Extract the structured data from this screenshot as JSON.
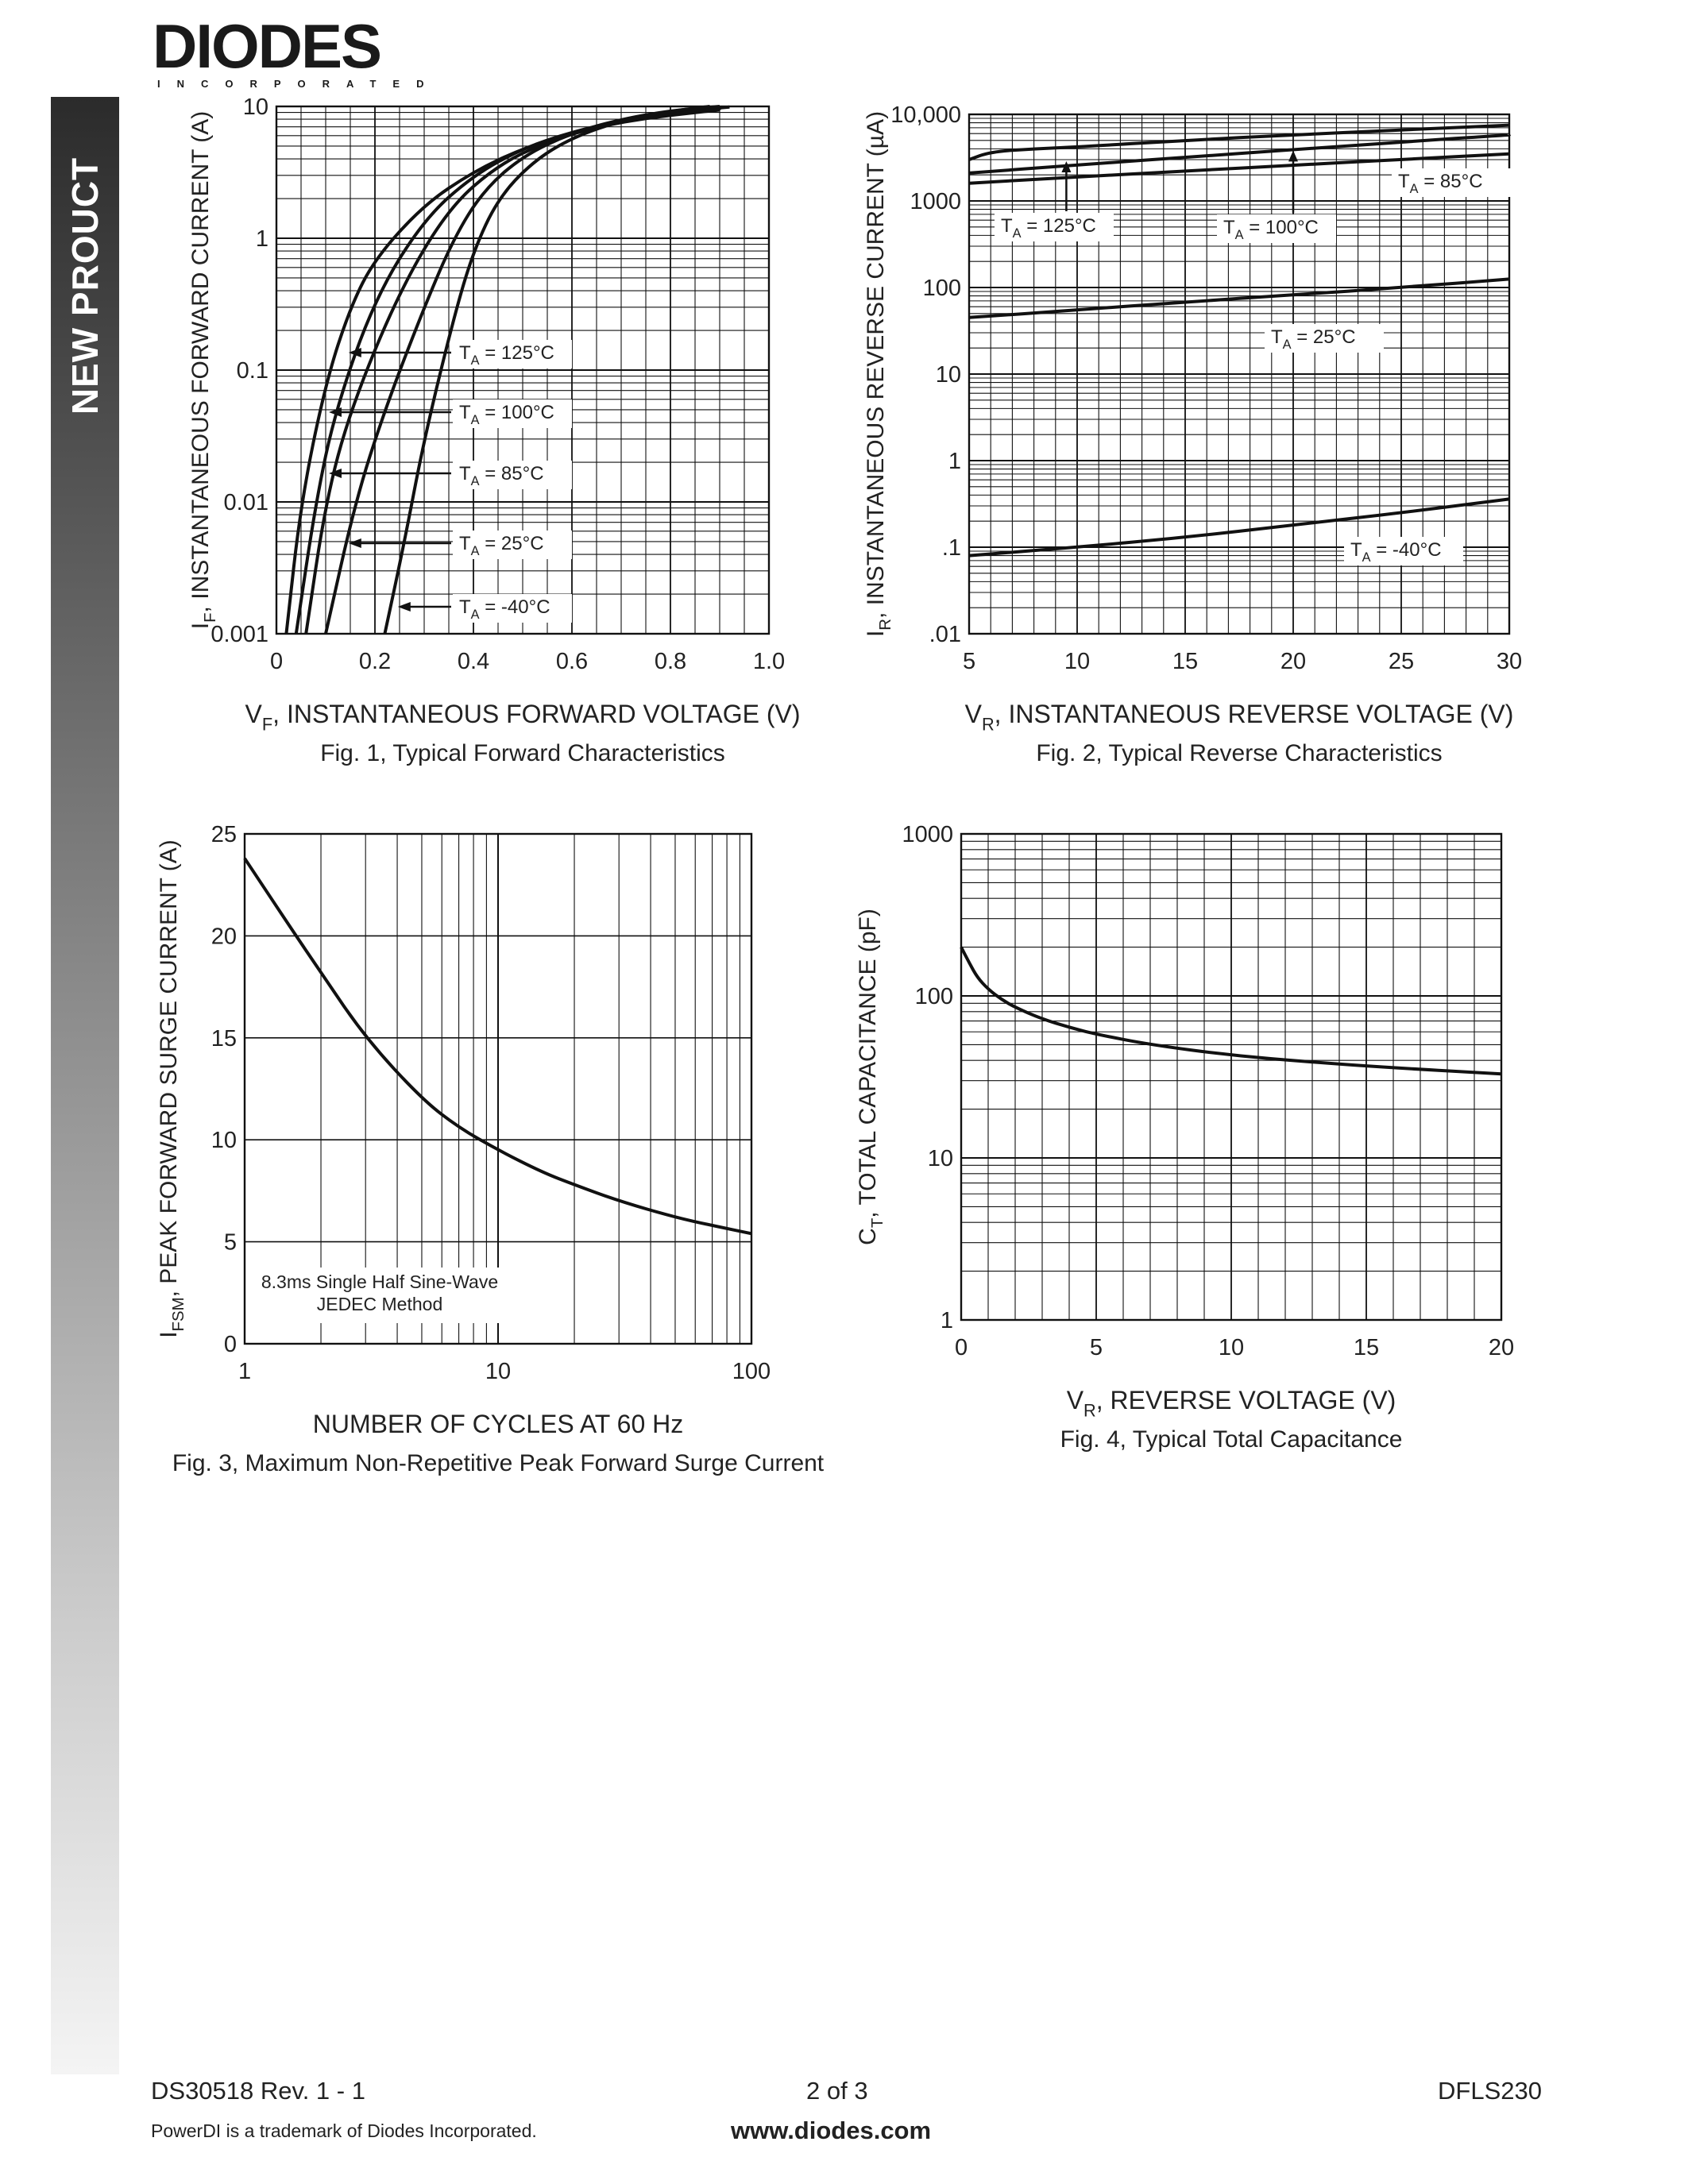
{
  "header": {
    "logo_text": "DIODES",
    "logo_sub": "INCORPORATED"
  },
  "sidebar": {
    "label": "NEW PROUCT"
  },
  "footer": {
    "doc_id": "DS30518 Rev. 1 - 1",
    "page": "2 of 3",
    "part": "DFLS230",
    "trademark": "PowerDI is a trademark of Diodes Incorporated.",
    "url": "www.diodes.com"
  },
  "chart_data": [
    {
      "id": "fig1",
      "type": "line",
      "title": "Fig. 1, Typical Forward Characteristics",
      "xlabel": "V",
      "xlabel_sub": "F",
      "xlabel_rest": ", INSTANTANEOUS FORWARD VOLTAGE (V)",
      "ylabel": "I",
      "ylabel_sub": "F",
      "ylabel_rest": ", INSTANTANEOUS FORWARD CURRENT (A)",
      "xlim": [
        0,
        1.0
      ],
      "ylim": [
        0.001,
        10
      ],
      "ylog": true,
      "xticks": [
        "0",
        "0.2",
        "0.4",
        "0.6",
        "0.8",
        "1.0"
      ],
      "yticks": [
        "0.001",
        "0.01",
        "0.1",
        "1",
        "10"
      ],
      "grid": true,
      "series": [
        {
          "name": "T = 125°C",
          "x": [
            0.02,
            0.05,
            0.1,
            0.15,
            0.2,
            0.3,
            0.4,
            0.5,
            0.6,
            0.7,
            0.8,
            0.9
          ],
          "y": [
            0.001,
            0.01,
            0.08,
            0.3,
            0.7,
            1.8,
            3.2,
            4.8,
            6.3,
            7.6,
            8.6,
            9.4
          ]
        },
        {
          "name": "T = 100°C",
          "x": [
            0.04,
            0.08,
            0.12,
            0.2,
            0.3,
            0.4,
            0.5,
            0.6,
            0.7,
            0.8,
            0.9
          ],
          "y": [
            0.001,
            0.01,
            0.05,
            0.35,
            1.4,
            3.0,
            4.8,
            6.4,
            7.8,
            8.8,
            9.6
          ]
        },
        {
          "name": "T = 85°C",
          "x": [
            0.06,
            0.1,
            0.15,
            0.25,
            0.35,
            0.45,
            0.55,
            0.65,
            0.75,
            0.85,
            0.92
          ],
          "y": [
            0.001,
            0.01,
            0.05,
            0.4,
            1.7,
            3.6,
            5.4,
            7.0,
            8.4,
            9.4,
            9.9
          ]
        },
        {
          "name": "T = 25°C",
          "x": [
            0.1,
            0.16,
            0.22,
            0.3,
            0.36,
            0.42,
            0.5,
            0.6,
            0.7,
            0.8,
            0.9
          ],
          "y": [
            0.001,
            0.01,
            0.05,
            0.3,
            1.0,
            2.3,
            4.2,
            6.3,
            8.0,
            9.3,
            10.0
          ]
        },
        {
          "name": "T = -40°C",
          "x": [
            0.22,
            0.26,
            0.3,
            0.36,
            0.4,
            0.45,
            0.52,
            0.6,
            0.7,
            0.8,
            0.88
          ],
          "y": [
            0.001,
            0.005,
            0.03,
            0.25,
            0.8,
            2.0,
            3.8,
            5.8,
            7.8,
            9.2,
            10.0
          ]
        }
      ],
      "annotations": [
        {
          "text": "T",
          "sub": "A",
          "rest": " = 125°C"
        },
        {
          "text": "T",
          "sub": "A",
          "rest": " = 100°C"
        },
        {
          "text": "T",
          "sub": "A",
          "rest": " = 85°C"
        },
        {
          "text": "T",
          "sub": "A",
          "rest": " = 25°C"
        },
        {
          "text": "T",
          "sub": "A",
          "rest": " = -40°C"
        }
      ]
    },
    {
      "id": "fig2",
      "type": "line",
      "title": "Fig. 2, Typical Reverse Characteristics",
      "xlabel": "V",
      "xlabel_sub": "R",
      "xlabel_rest": ", INSTANTANEOUS REVERSE VOLTAGE (V)",
      "ylabel": "I",
      "ylabel_sub": "R",
      "ylabel_rest": ", INSTANTANEOUS REVERSE CURRENT (µA)",
      "xlim": [
        5,
        30
      ],
      "ylim": [
        0.01,
        10000
      ],
      "ylog": true,
      "xticks": [
        "5",
        "10",
        "15",
        "20",
        "25",
        "30"
      ],
      "yticks": [
        ".01",
        ".1",
        "1",
        "10",
        "100",
        "1000",
        "10,000"
      ],
      "grid": true,
      "series": [
        {
          "name": "T = 125°C",
          "x": [
            5,
            6,
            8,
            10,
            15,
            20,
            25,
            30
          ],
          "y": [
            3000,
            3700,
            4000,
            4200,
            5000,
            5800,
            6600,
            7500
          ]
        },
        {
          "name": "T = 100°C",
          "x": [
            5,
            10,
            15,
            20,
            25,
            30
          ],
          "y": [
            2100,
            2600,
            3200,
            3900,
            4800,
            5800
          ]
        },
        {
          "name": "T = 85°C",
          "x": [
            5,
            10,
            15,
            20,
            25,
            30
          ],
          "y": [
            1600,
            1900,
            2200,
            2600,
            3000,
            3500
          ]
        },
        {
          "name": "T = 25°C",
          "x": [
            5,
            10,
            15,
            20,
            25,
            30
          ],
          "y": [
            45,
            55,
            68,
            82,
            100,
            125
          ]
        },
        {
          "name": "T = -40°C",
          "x": [
            5,
            10,
            15,
            20,
            25,
            30
          ],
          "y": [
            0.08,
            0.1,
            0.13,
            0.18,
            0.25,
            0.36
          ]
        }
      ],
      "annotations": [
        {
          "text": "T",
          "sub": "A",
          "rest": " = 125°C"
        },
        {
          "text": "T",
          "sub": "A",
          "rest": " = 100°C"
        },
        {
          "text": "T",
          "sub": "A",
          "rest": " = 85°C"
        },
        {
          "text": "T",
          "sub": "A",
          "rest": " = 25°C"
        },
        {
          "text": "T",
          "sub": "A",
          "rest": " = -40°C"
        }
      ]
    },
    {
      "id": "fig3",
      "type": "line",
      "title": "Fig. 3, Maximum Non-Repetitive Peak Forward Surge Current",
      "xlabel": "NUMBER OF CYCLES AT 60 Hz",
      "ylabel": "I",
      "ylabel_sub": "FSM",
      "ylabel_rest": ", PEAK FORWARD SURGE CURRENT (A)",
      "xlim": [
        1,
        100
      ],
      "xlog": true,
      "ylim": [
        0,
        25
      ],
      "xticks": [
        "1",
        "10",
        "100"
      ],
      "yticks": [
        "0",
        "5",
        "10",
        "15",
        "20",
        "25"
      ],
      "grid": true,
      "series": [
        {
          "name": "",
          "x": [
            1,
            1.5,
            2,
            3,
            5,
            7,
            10,
            15,
            20,
            30,
            50,
            70,
            100
          ],
          "y": [
            23.8,
            20.5,
            18.2,
            15.0,
            12.0,
            10.6,
            9.5,
            8.4,
            7.8,
            7.0,
            6.2,
            5.8,
            5.4
          ]
        }
      ],
      "annotation_lines": [
        "8.3ms Single Half Sine-Wave",
        "JEDEC Method"
      ]
    },
    {
      "id": "fig4",
      "type": "line",
      "title": "Fig. 4, Typical Total Capacitance",
      "xlabel": "V",
      "xlabel_sub": "R",
      "xlabel_rest": ", REVERSE VOLTAGE (V)",
      "ylabel": "C",
      "ylabel_sub": "T",
      "ylabel_rest": ", TOTAL CAPACITANCE (pF)",
      "xlim": [
        0,
        20
      ],
      "ylim": [
        1,
        1000
      ],
      "ylog": true,
      "xticks": [
        "0",
        "5",
        "10",
        "15",
        "20"
      ],
      "yticks": [
        "1",
        "10",
        "100",
        "1000"
      ],
      "grid": true,
      "series": [
        {
          "name": "",
          "x": [
            0,
            0.3,
            0.6,
            1,
            1.5,
            2,
            3,
            4,
            5,
            7,
            10,
            13,
            16,
            20
          ],
          "y": [
            200,
            160,
            130,
            110,
            95,
            85,
            72,
            64,
            58,
            50,
            43,
            39,
            36,
            33
          ]
        }
      ]
    }
  ]
}
